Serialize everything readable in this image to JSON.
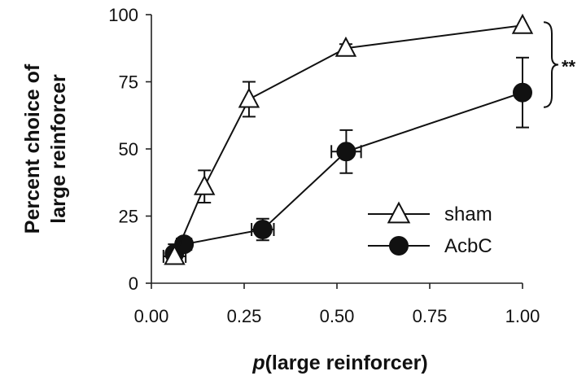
{
  "chart_data": {
    "type": "line",
    "xlabel_italic": "p",
    "xlabel_rest": "(large reinforcer)",
    "ylabel_line1": "Percent choice of",
    "ylabel_line2": "large reinforcer",
    "xlim": [
      0,
      1.0
    ],
    "ylim": [
      0,
      100
    ],
    "x_ticks": [
      "0.00",
      "0.25",
      "0.50",
      "0.75",
      "1.00"
    ],
    "y_ticks": [
      "0",
      "25",
      "50",
      "75",
      "100"
    ],
    "legend_position": "bottom-right",
    "significance_label": "**",
    "series": [
      {
        "name": "sham",
        "marker": "open-triangle",
        "points": [
          {
            "x": 0.0625,
            "y": 10,
            "yerr": 1,
            "xerr": 0.03
          },
          {
            "x": 0.143,
            "y": 36,
            "yerr": 6,
            "xerr": 0
          },
          {
            "x": 0.263,
            "y": 68.5,
            "yerr": 6.5,
            "xerr": 0
          },
          {
            "x": 0.524,
            "y": 87.5,
            "yerr": 1.5,
            "xerr": 0
          },
          {
            "x": 1.0,
            "y": 96,
            "yerr": 0,
            "xerr": 0
          }
        ]
      },
      {
        "name": "AcbC",
        "marker": "filled-circle",
        "points": [
          {
            "x": 0.062,
            "y": 11,
            "yerr": 3.5,
            "xerr": 0.015
          },
          {
            "x": 0.088,
            "y": 14.5,
            "yerr": 2.5,
            "xerr": 0.02
          },
          {
            "x": 0.3,
            "y": 20,
            "yerr": 4,
            "xerr": 0.03
          },
          {
            "x": 0.525,
            "y": 49,
            "yerr": 8,
            "xerr": 0.04
          },
          {
            "x": 1.0,
            "y": 71,
            "yerr": 13,
            "xerr": 0
          }
        ]
      }
    ]
  }
}
